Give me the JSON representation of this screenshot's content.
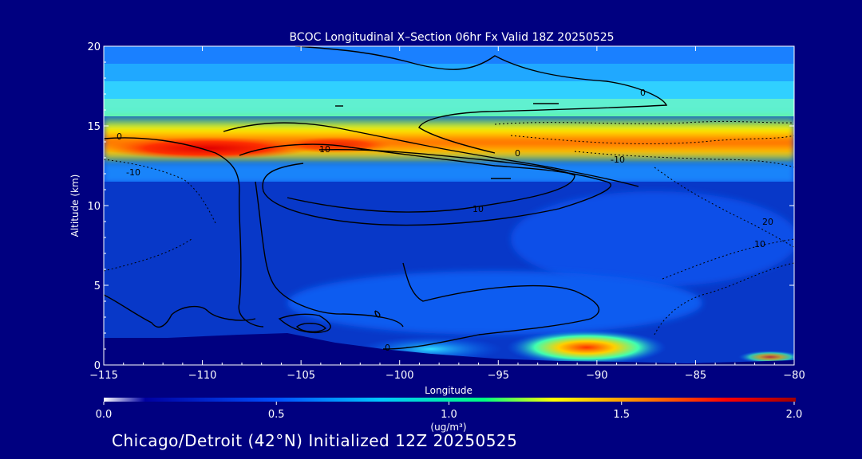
{
  "chart_data": {
    "type": "heatmap",
    "title": "BCOC Longitudinal X–Section 06hr  Fx Valid 18Z 20250525",
    "xlabel": "Longitude",
    "ylabel": "Altitude (km)",
    "xlim": [
      -115,
      -80
    ],
    "ylim": [
      0,
      20
    ],
    "x_ticks": [
      -115,
      -110,
      -105,
      -100,
      -95,
      -90,
      -85,
      -80
    ],
    "x_tick_labels": [
      "−115",
      "−110",
      "−105",
      "−100",
      "−95",
      "−90",
      "−85",
      "−80"
    ],
    "y_ticks": [
      0,
      5,
      10,
      15,
      20
    ],
    "y_tick_labels": [
      "0",
      "5",
      "10",
      "15",
      "20"
    ],
    "colorbar": {
      "min": 0.0,
      "max": 2.0,
      "ticks": [
        0.0,
        0.5,
        1.0,
        1.5,
        2.0
      ],
      "tick_labels": [
        "0.0",
        "0.5",
        "1.0",
        "1.5",
        "2.0"
      ],
      "label": "(ug/m³)",
      "colors": [
        "#ffffff",
        "#0000a0",
        "#0050ff",
        "#00c8ff",
        "#00ff80",
        "#ffff00",
        "#ff8000",
        "#ff0000",
        "#a00000"
      ]
    },
    "contour_labels": [
      "0",
      "10",
      "-10",
      "0",
      "-10",
      "10",
      "0",
      "-10",
      "10",
      "20",
      "0"
    ],
    "background_color": "#000080"
  },
  "footer": "Chicago/Detroit (42°N) Initialized 12Z 20250525"
}
